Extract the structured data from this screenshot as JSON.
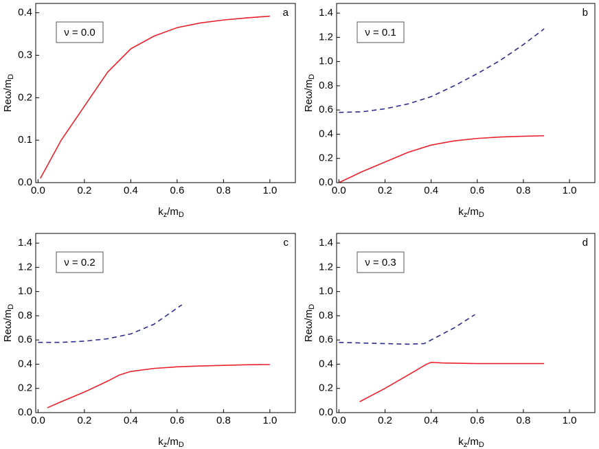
{
  "chart_data": [
    {
      "type": "line",
      "panel_label": "a",
      "annotation": "ν = 0.0",
      "xlabel_parts": [
        "k",
        "z",
        "/m",
        "D"
      ],
      "ylabel_parts": [
        "Reω/m",
        "D"
      ],
      "xlim": [
        -0.01,
        1.11
      ],
      "ylim": [
        0,
        0.422
      ],
      "xticks": [
        {
          "value": 0,
          "label": "0.0"
        },
        0.2,
        0.4,
        0.6,
        0.8,
        {
          "value": 1,
          "label": "1.0"
        }
      ],
      "yticks": [
        {
          "value": 0,
          "label": "0.0"
        },
        0.1,
        0.2,
        0.3,
        0.4
      ],
      "series": [
        {
          "color": "#e8202a",
          "line_style": "solid",
          "x": [
            0.01,
            0.1,
            0.2,
            0.3,
            0.4,
            0.5,
            0.6,
            0.7,
            0.8,
            0.9,
            1.0
          ],
          "values": [
            0.01,
            0.1,
            0.18,
            0.26,
            0.315,
            0.345,
            0.365,
            0.376,
            0.383,
            0.388,
            0.392
          ]
        }
      ]
    },
    {
      "type": "line",
      "panel_label": "b",
      "annotation": "ν = 0.1",
      "xlabel_parts": [
        "k",
        "z",
        "/m",
        "D"
      ],
      "ylabel_parts": [
        "Reω/m",
        "D"
      ],
      "xlim": [
        -0.01,
        1.11
      ],
      "ylim": [
        0,
        1.48
      ],
      "xticks": [
        {
          "value": 0,
          "label": "0.0"
        },
        0.2,
        0.4,
        0.6,
        0.8,
        {
          "value": 1,
          "label": "1.0"
        }
      ],
      "yticks": [
        {
          "value": 0,
          "label": "0.0"
        },
        0.2,
        0.4,
        0.6,
        0.8,
        {
          "value": 1,
          "label": "1.0"
        },
        1.2,
        1.4
      ],
      "series": [
        {
          "color": "#e8202a",
          "line_style": "solid",
          "x": [
            0,
            0.1,
            0.2,
            0.3,
            0.4,
            0.5,
            0.6,
            0.7,
            0.8,
            0.89
          ],
          "values": [
            0,
            0.09,
            0.17,
            0.25,
            0.31,
            0.345,
            0.365,
            0.377,
            0.383,
            0.387
          ]
        },
        {
          "color": "#2b2b8f",
          "line_style": "dashed",
          "x": [
            0,
            0.1,
            0.2,
            0.3,
            0.4,
            0.5,
            0.6,
            0.7,
            0.8,
            0.89
          ],
          "values": [
            0.58,
            0.585,
            0.61,
            0.65,
            0.71,
            0.8,
            0.9,
            1.01,
            1.14,
            1.27
          ]
        }
      ]
    },
    {
      "type": "line",
      "panel_label": "c",
      "annotation": "ν = 0.2",
      "xlabel_parts": [
        "k",
        "z",
        "/m",
        "D"
      ],
      "ylabel_parts": [
        "Reω/m",
        "D"
      ],
      "xlim": [
        -0.01,
        1.11
      ],
      "ylim": [
        0,
        1.48
      ],
      "xticks": [
        {
          "value": 0,
          "label": "0.0"
        },
        0.2,
        0.4,
        0.6,
        0.8,
        {
          "value": 1,
          "label": "1.0"
        }
      ],
      "yticks": [
        {
          "value": 0,
          "label": "0.0"
        },
        0.2,
        0.4,
        0.6,
        0.8,
        {
          "value": 1,
          "label": "1.0"
        },
        1.2,
        1.4
      ],
      "series": [
        {
          "color": "#e8202a",
          "line_style": "solid",
          "x": [
            0.04,
            0.1,
            0.2,
            0.3,
            0.35,
            0.4,
            0.5,
            0.6,
            0.7,
            0.8,
            0.9,
            1.0
          ],
          "values": [
            0.04,
            0.09,
            0.17,
            0.26,
            0.31,
            0.34,
            0.365,
            0.378,
            0.385,
            0.39,
            0.395,
            0.397
          ]
        },
        {
          "color": "#2b2b8f",
          "line_style": "dashed",
          "x": [
            0,
            0.1,
            0.2,
            0.3,
            0.4,
            0.5,
            0.62
          ],
          "values": [
            0.58,
            0.58,
            0.59,
            0.61,
            0.65,
            0.73,
            0.89
          ]
        }
      ]
    },
    {
      "type": "line",
      "panel_label": "d",
      "annotation": "ν = 0.3",
      "xlabel_parts": [
        "k",
        "z",
        "/m",
        "D"
      ],
      "ylabel_parts": [
        "Reω/m",
        "D"
      ],
      "xlim": [
        -0.01,
        1.11
      ],
      "ylim": [
        0,
        1.48
      ],
      "xticks": [
        {
          "value": 0,
          "label": "0.0"
        },
        0.2,
        0.4,
        0.6,
        0.8,
        {
          "value": 1,
          "label": "1.0"
        }
      ],
      "yticks": [
        {
          "value": 0,
          "label": "0.0"
        },
        0.2,
        0.4,
        0.6,
        0.8,
        {
          "value": 1,
          "label": "1.0"
        },
        1.2,
        1.4
      ],
      "series": [
        {
          "color": "#e8202a",
          "line_style": "solid",
          "x": [
            0.09,
            0.2,
            0.3,
            0.38,
            0.4,
            0.45,
            0.6,
            0.8,
            0.89
          ],
          "values": [
            0.09,
            0.2,
            0.31,
            0.4,
            0.415,
            0.41,
            0.405,
            0.405,
            0.405
          ]
        },
        {
          "color": "#2b2b8f",
          "line_style": "dashed",
          "x": [
            0,
            0.1,
            0.2,
            0.3,
            0.37,
            0.4,
            0.5,
            0.59
          ],
          "values": [
            0.58,
            0.575,
            0.57,
            0.565,
            0.57,
            0.6,
            0.7,
            0.81
          ]
        }
      ]
    }
  ]
}
